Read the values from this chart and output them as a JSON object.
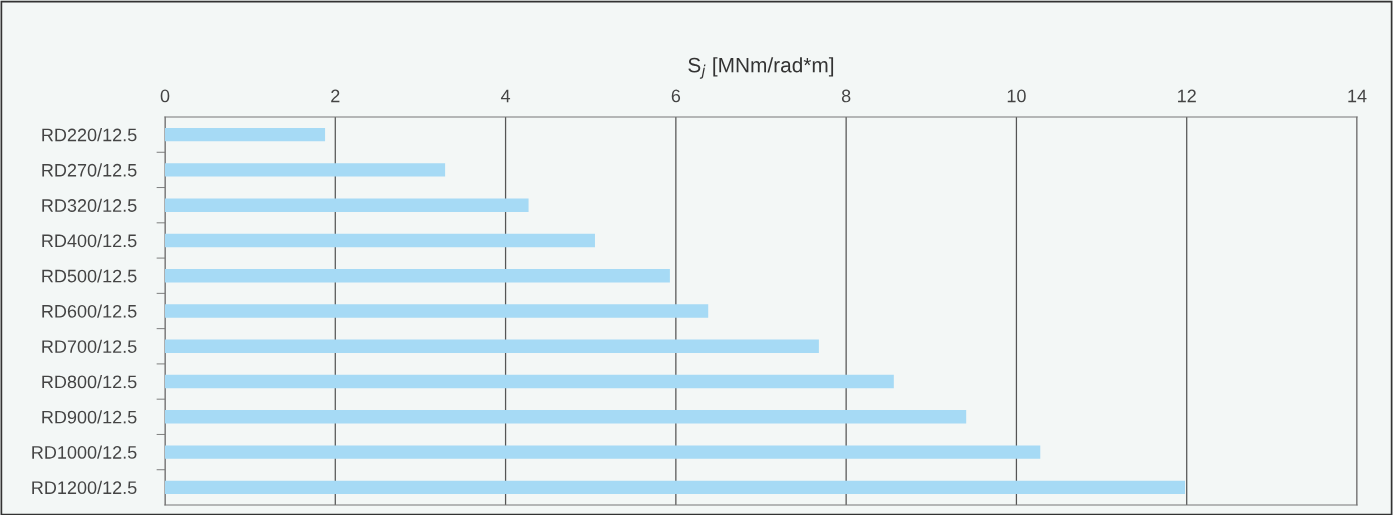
{
  "chart_data": {
    "type": "bar",
    "orientation": "horizontal",
    "xlabel": "S$_{j}$ [MNm/rad*m]",
    "categories": [
      "RD220/12.5",
      "RD270/12.5",
      "RD320/12.5",
      "RD400/12.5",
      "RD500/12.5",
      "RD600/12.5",
      "RD700/12.5",
      "RD800/12.5",
      "RD900/12.5",
      "RD1000/12.5",
      "RD1200/12.5"
    ],
    "values": [
      1.88,
      3.29,
      4.27,
      5.05,
      5.93,
      6.38,
      7.68,
      8.56,
      9.41,
      10.28,
      11.98
    ],
    "color": "#a6daf5",
    "xlim": [
      0,
      14
    ],
    "xticks": [
      0,
      2,
      4,
      6,
      8,
      10,
      12,
      14
    ],
    "grid": "x",
    "legend": false
  }
}
